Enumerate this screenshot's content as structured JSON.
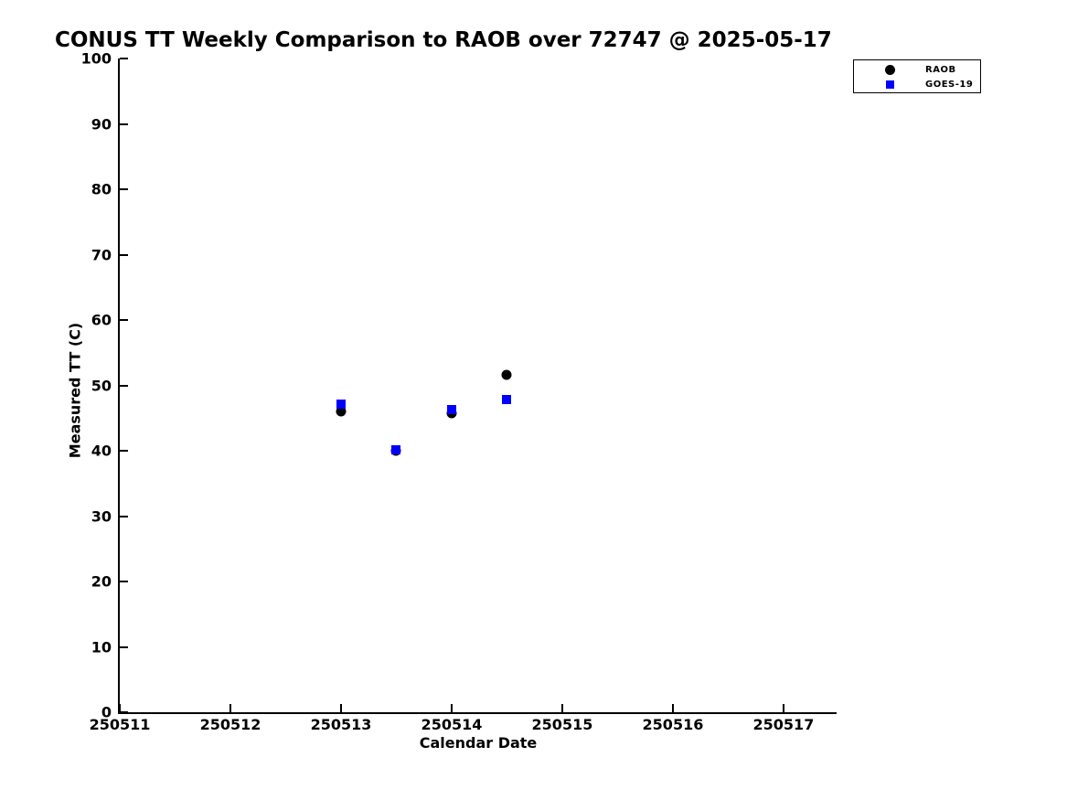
{
  "chart_data": {
    "type": "scatter",
    "title": "CONUS TT Weekly Comparison to RAOB over 72747 @ 2025-05-17",
    "xlabel": "Calendar Date",
    "ylabel": "Measured TT (C)",
    "xlim": [
      250511,
      250517.48
    ],
    "ylim": [
      0,
      100
    ],
    "xticks": [
      250511,
      250512,
      250513,
      250514,
      250515,
      250516,
      250517
    ],
    "yticks": [
      0,
      10,
      20,
      30,
      40,
      50,
      60,
      70,
      80,
      90,
      100
    ],
    "grid": false,
    "background_color": "#ffffff",
    "axis_color": "#000000",
    "legend_position": "top-right-outside",
    "series": [
      {
        "name": "RAOB",
        "marker": "circle",
        "color": "#000000",
        "points": [
          [
            250513.0,
            46.0
          ],
          [
            250513.5,
            40.0
          ],
          [
            250514.0,
            45.8
          ],
          [
            250514.5,
            51.6
          ]
        ]
      },
      {
        "name": "GOES-19",
        "marker": "square",
        "color": "#0000ff",
        "points": [
          [
            250513.0,
            47.2
          ],
          [
            250513.5,
            40.2
          ],
          [
            250514.0,
            46.3
          ],
          [
            250514.5,
            47.9
          ]
        ]
      }
    ]
  }
}
